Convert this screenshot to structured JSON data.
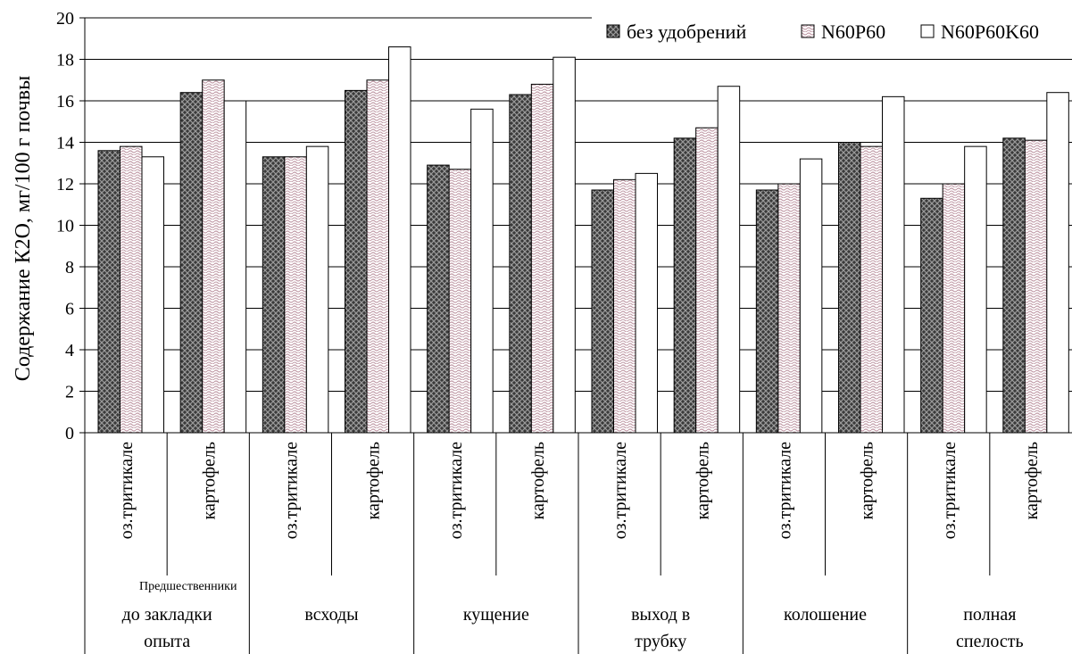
{
  "chart_data": {
    "type": "bar",
    "ylabel": "Содержание К2О, мг/100 г почвы",
    "ylim": [
      0,
      20
    ],
    "yticks": [
      0,
      2,
      4,
      6,
      8,
      10,
      12,
      14,
      16,
      18,
      20
    ],
    "grid": true,
    "legend_position": "top-right",
    "annotation": "Предшественники",
    "groups": [
      {
        "label": "до закладки опыта",
        "lines": [
          "до закладки",
          "опыта"
        ]
      },
      {
        "label": "всходы",
        "lines": [
          "всходы"
        ]
      },
      {
        "label": "кущение",
        "lines": [
          "кущение"
        ]
      },
      {
        "label": "выход в трубку",
        "lines": [
          "выход в",
          "трубку"
        ]
      },
      {
        "label": "колошение",
        "lines": [
          "колошение"
        ]
      },
      {
        "label": "полная спелость",
        "lines": [
          "полная",
          "спелость"
        ]
      }
    ],
    "categories": [
      "оз.тритикале",
      "картофель",
      "оз.тритикале",
      "картофель",
      "оз.тритикале",
      "картофель",
      "оз.тритикале",
      "картофель",
      "оз.тритикале",
      "картофель",
      "оз.тритикале",
      "картофель"
    ],
    "series": [
      {
        "name": "без удобрений",
        "pattern": "crosshatch-dark",
        "values": [
          13.6,
          16.4,
          13.3,
          16.5,
          12.9,
          16.3,
          11.7,
          14.2,
          11.7,
          14.0,
          11.3,
          14.2
        ]
      },
      {
        "name": "N60P60",
        "pattern": "wave-pink",
        "values": [
          13.8,
          17.0,
          13.3,
          17.0,
          12.7,
          16.8,
          12.2,
          14.7,
          12.0,
          13.8,
          12.0,
          14.1
        ]
      },
      {
        "name": "N60P60K60",
        "pattern": "white",
        "values": [
          13.3,
          16.0,
          13.8,
          18.6,
          15.6,
          18.1,
          12.5,
          16.7,
          13.2,
          16.2,
          13.8,
          16.4
        ]
      }
    ]
  }
}
